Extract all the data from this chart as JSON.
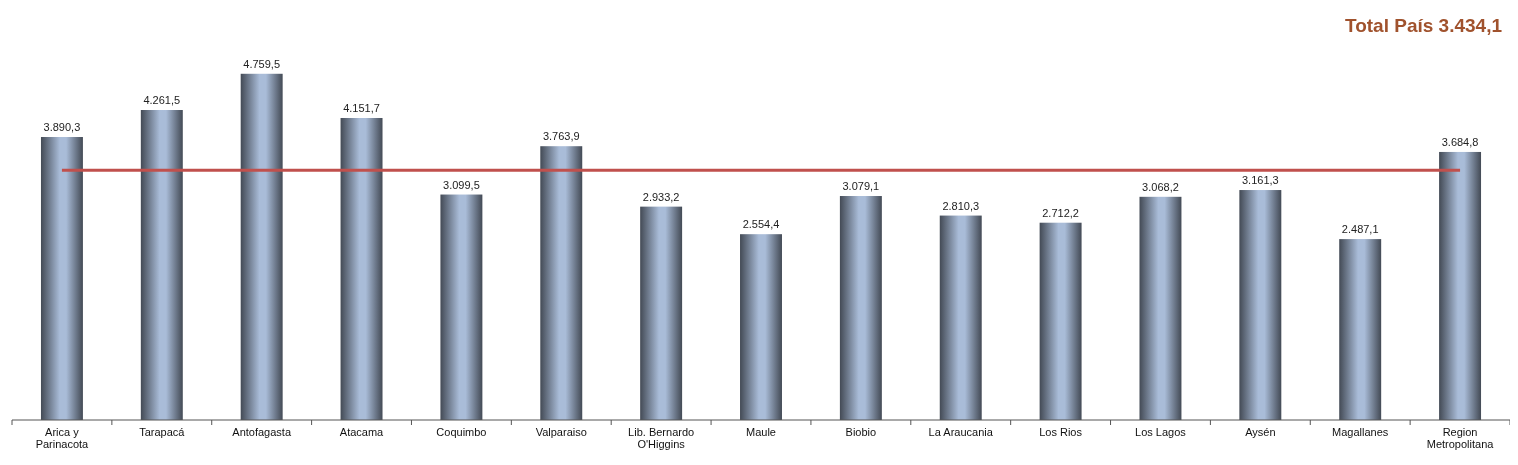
{
  "chart_data": {
    "type": "bar",
    "categories": [
      "Arica y Parinacota",
      "Tarapacá",
      "Antofagasta",
      "Atacama",
      "Coquimbo",
      "Valparaiso",
      "Lib. Bernardo O'Higgins",
      "Maule",
      "Biobio",
      "La Araucania",
      "Los Rios",
      "Los Lagos",
      "Aysén",
      "Magallanes",
      "Region Metropolitana"
    ],
    "values": [
      3890.3,
      4261.5,
      4759.5,
      4151.7,
      3099.5,
      3763.9,
      2933.2,
      2554.4,
      3079.1,
      2810.3,
      2712.2,
      3068.2,
      3161.3,
      2487.1,
      3684.8
    ],
    "value_labels": [
      "3.890,3",
      "4.261,5",
      "4.759,5",
      "4.151,7",
      "3.099,5",
      "3.763,9",
      "2.933,2",
      "2.554,4",
      "3.079,1",
      "2.810,3",
      "2.712,2",
      "3.068,2",
      "3.161,3",
      "2.487,1",
      "3.684,8"
    ],
    "color": "#a9bcd8",
    "ref_lines": [
      {
        "axis": "y",
        "value": 3434.1,
        "label": "Total País 3.434,1",
        "color": "#c0504d"
      }
    ],
    "tick_labels": "x"
  }
}
